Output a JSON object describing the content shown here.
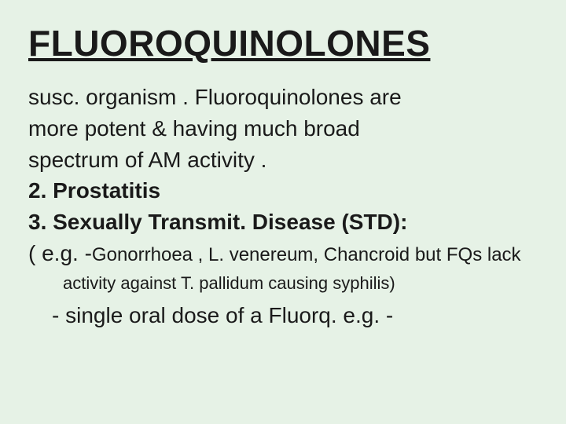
{
  "slide": {
    "title": "FLUOROQUINOLONES",
    "background_color": "#e6f2e6",
    "title_color": "#1a1a1a",
    "text_color": "#1a1a1a",
    "title_fontsize": 46,
    "body_fontsize": 28,
    "sub_fontsize": 24,
    "lines": {
      "l1": "susc. organism . Fluoroquinolones are",
      "l2": "more potent & having much broad",
      "l3": "spectrum of  AM activity .",
      "l4": "2. Prostatitis",
      "l5": "3. Sexually Transmit. Disease (STD):",
      "l6a": "( e.g. -",
      "l6b": "Gonorrhoea , L. venereum, Chancroid ",
      "l6c": "but FQs lack",
      "l7a": "activity against T. pallidum causing ",
      "l7b": "syphilis",
      "l7c": ")",
      "l8": "- single oral dose of a Fluorq. e.g. -"
    }
  }
}
